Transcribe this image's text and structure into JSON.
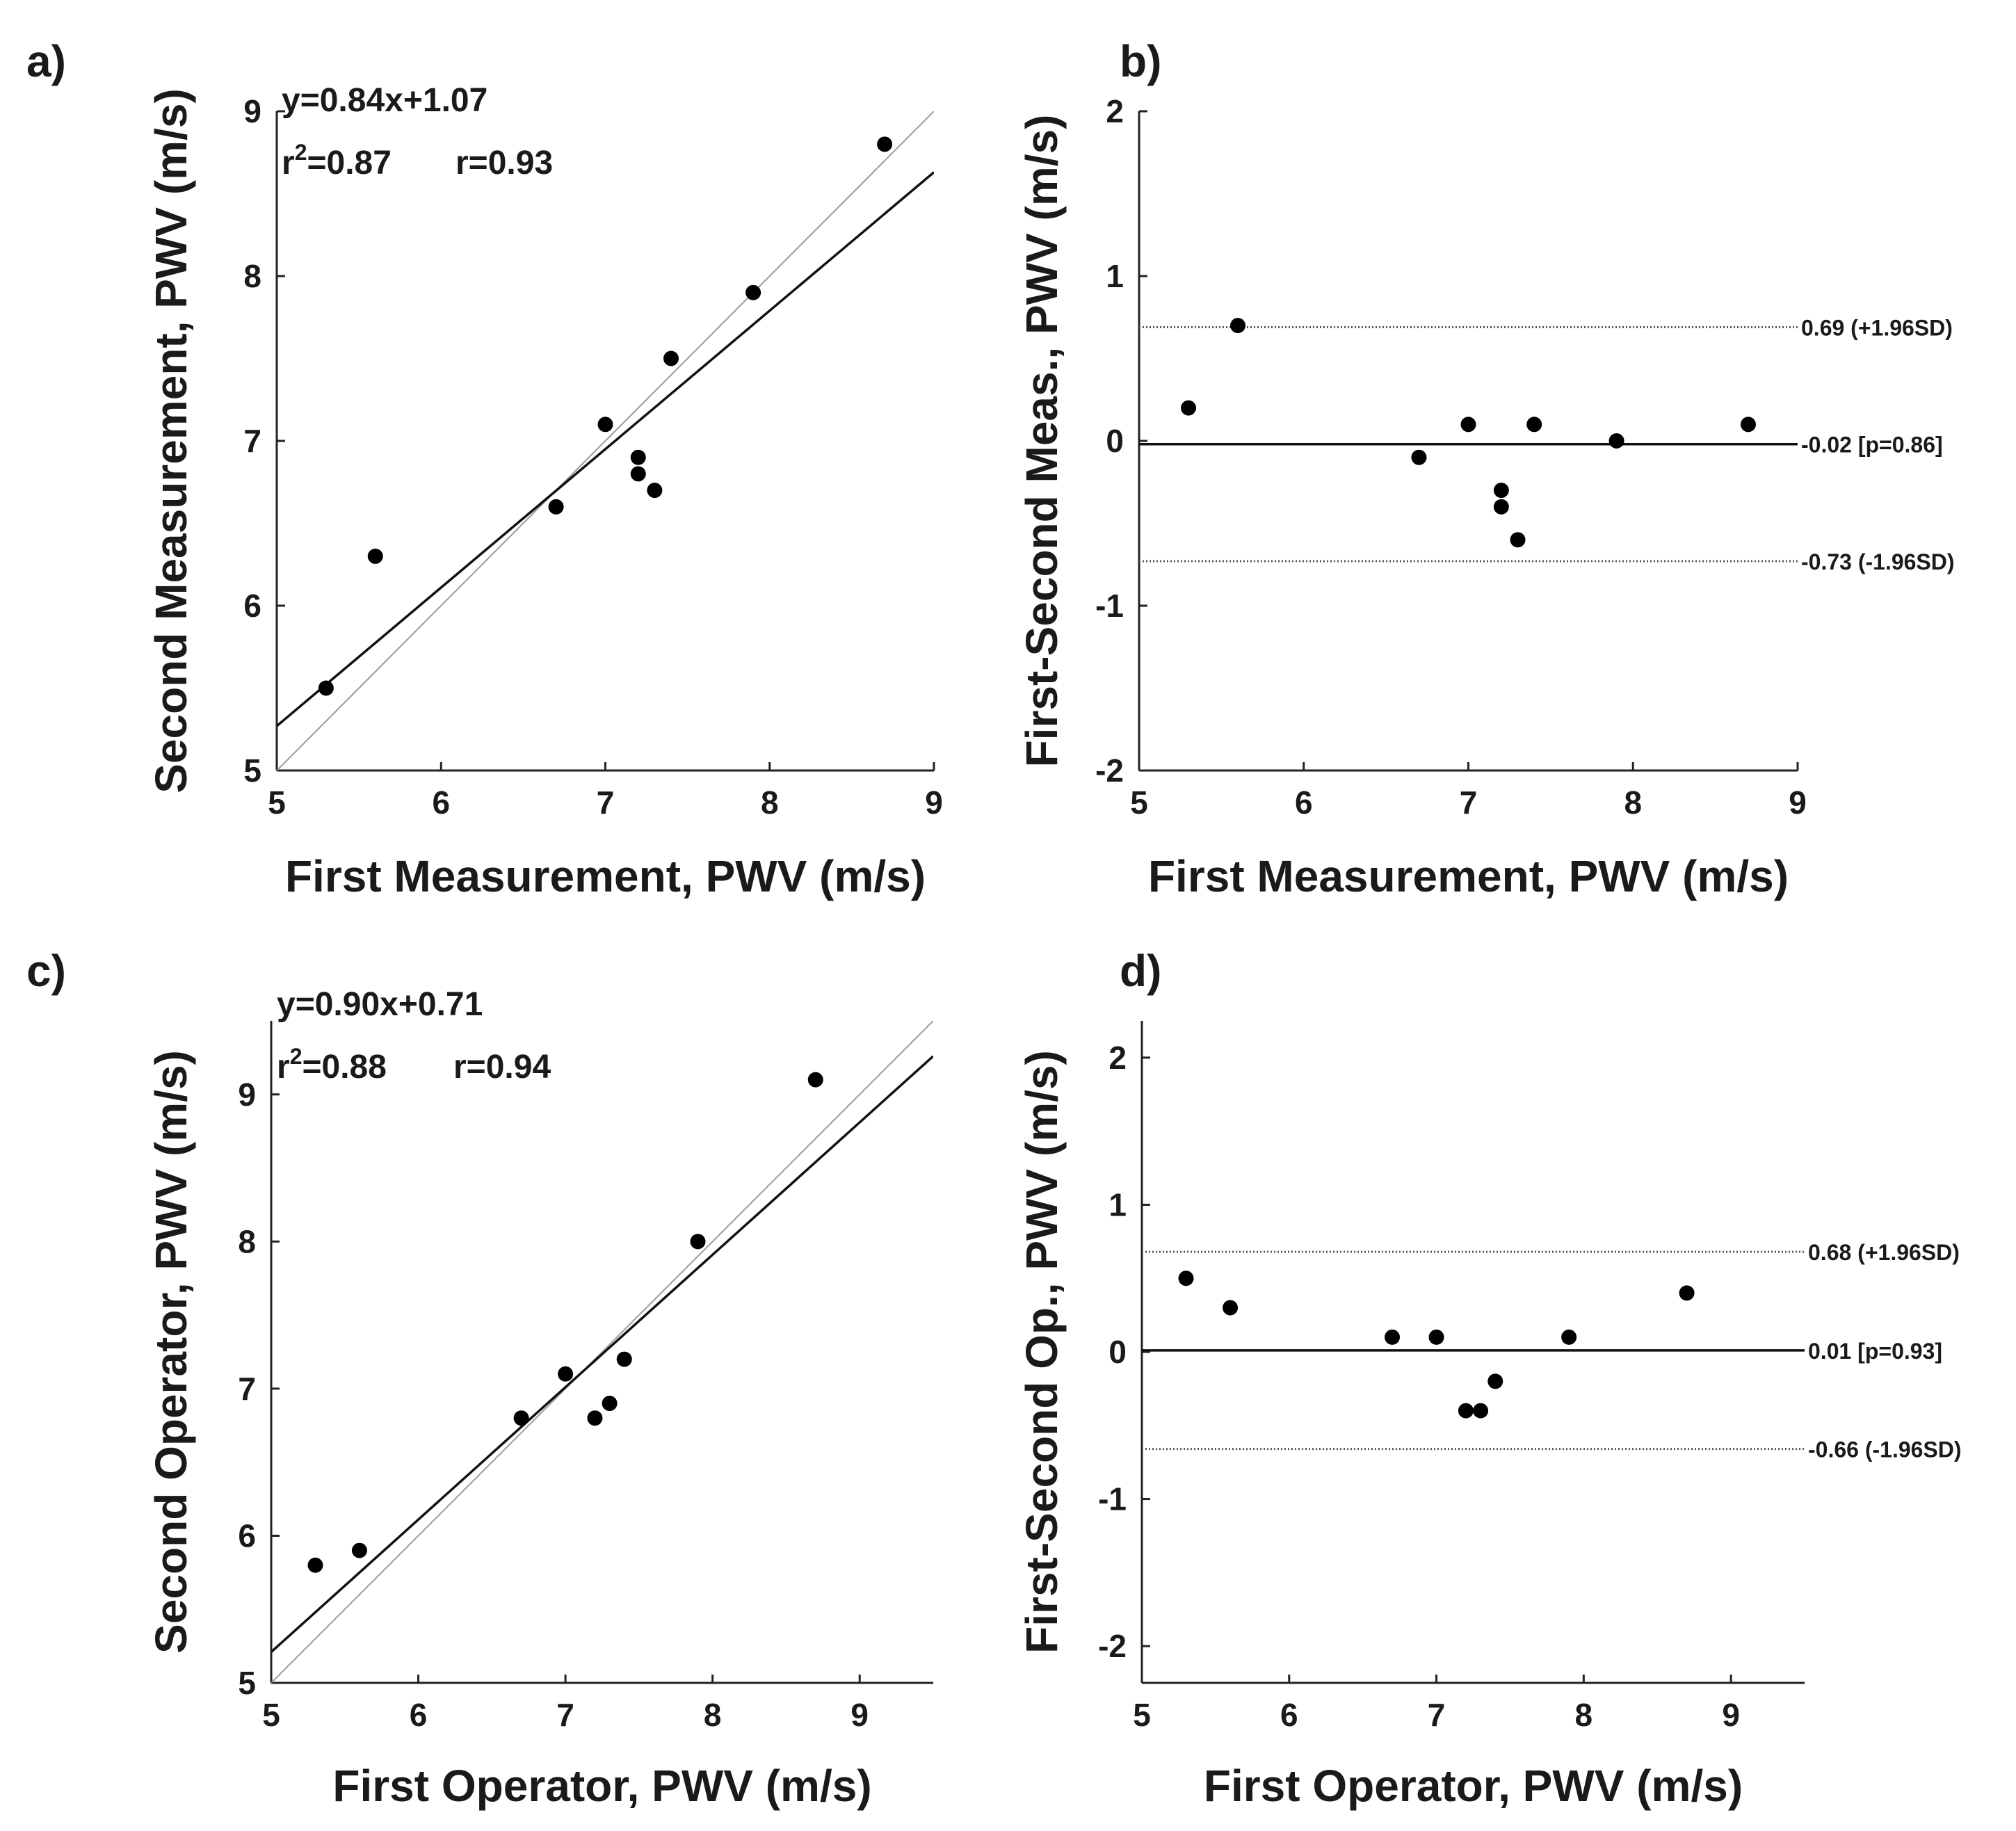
{
  "chart_data": [
    {
      "id": "a",
      "panel_label": "a)",
      "type": "scatter",
      "subtype": "regression",
      "xlabel": "First Measurement, PWV (m/s)",
      "ylabel": "Second Measurement, PWV (m/s)",
      "xlim": [
        5,
        9
      ],
      "ylim": [
        5,
        9
      ],
      "xticks": [
        5,
        6,
        7,
        8,
        9
      ],
      "yticks": [
        5,
        6,
        7,
        8,
        9
      ],
      "points": [
        [
          5.3,
          5.5
        ],
        [
          5.6,
          6.3
        ],
        [
          6.7,
          6.6
        ],
        [
          7.0,
          7.1
        ],
        [
          7.2,
          6.9
        ],
        [
          7.2,
          6.8
        ],
        [
          7.3,
          6.7
        ],
        [
          7.4,
          7.5
        ],
        [
          7.9,
          7.9
        ],
        [
          8.7,
          8.8
        ]
      ],
      "fit": {
        "slope": 0.84,
        "intercept": 1.07
      },
      "identity_line": true,
      "equation": "y=0.84x+1.07",
      "r2_base": "r",
      "r2_sup": "2",
      "r2_value": "=0.87",
      "r_text": "r=0.93"
    },
    {
      "id": "b",
      "panel_label": "b)",
      "type": "scatter",
      "subtype": "bland-altman",
      "xlabel": "First Measurement, PWV (m/s)",
      "ylabel": "First-Second Meas., PWV (m/s)",
      "xlim": [
        5,
        9
      ],
      "ylim": [
        -2,
        2
      ],
      "xticks": [
        5,
        6,
        7,
        8,
        9
      ],
      "yticks": [
        -2,
        -1,
        0,
        1,
        2
      ],
      "points": [
        [
          5.3,
          0.2
        ],
        [
          5.6,
          0.7
        ],
        [
          6.7,
          -0.1
        ],
        [
          7.0,
          0.1
        ],
        [
          7.2,
          -0.3
        ],
        [
          7.2,
          -0.4
        ],
        [
          7.3,
          -0.6
        ],
        [
          7.4,
          0.1
        ],
        [
          7.9,
          0.0
        ],
        [
          8.7,
          0.1
        ]
      ],
      "lines": [
        {
          "value": 0.69,
          "style": "dotted",
          "label": "0.69 (+1.96SD)"
        },
        {
          "value": -0.02,
          "style": "solid",
          "label": "-0.02 [p=0.86]"
        },
        {
          "value": -0.73,
          "style": "dotted",
          "label": "-0.73 (-1.96SD)"
        }
      ]
    },
    {
      "id": "c",
      "panel_label": "c)",
      "type": "scatter",
      "subtype": "regression",
      "xlabel": "First Operator, PWV (m/s)",
      "ylabel": "Second Operator, PWV (m/s)",
      "xlim": [
        5,
        9.5
      ],
      "ylim": [
        5,
        9.5
      ],
      "xticks": [
        5,
        6,
        7,
        8,
        9
      ],
      "yticks": [
        5,
        6,
        7,
        8,
        9
      ],
      "points": [
        [
          5.3,
          5.8
        ],
        [
          5.6,
          5.9
        ],
        [
          6.7,
          6.8
        ],
        [
          7.0,
          7.1
        ],
        [
          7.2,
          6.8
        ],
        [
          7.3,
          6.9
        ],
        [
          7.4,
          7.2
        ],
        [
          7.9,
          8.0
        ],
        [
          8.7,
          9.1
        ]
      ],
      "fit": {
        "slope": 0.9,
        "intercept": 0.71
      },
      "identity_line": true,
      "equation": "y=0.90x+0.71",
      "r2_base": "r",
      "r2_sup": "2",
      "r2_value": "=0.88",
      "r_text": "r=0.94"
    },
    {
      "id": "d",
      "panel_label": "d)",
      "type": "scatter",
      "subtype": "bland-altman",
      "xlabel": "First Operator, PWV (m/s)",
      "ylabel": "First-Second Op., PWV (m/s)",
      "xlim": [
        5,
        9.5
      ],
      "ylim": [
        -2.25,
        2.25
      ],
      "xticks": [
        5,
        6,
        7,
        8,
        9
      ],
      "yticks": [
        -2,
        -1,
        0,
        1,
        2
      ],
      "points": [
        [
          5.3,
          0.5
        ],
        [
          5.6,
          0.3
        ],
        [
          6.7,
          0.1
        ],
        [
          7.0,
          0.1
        ],
        [
          7.2,
          -0.4
        ],
        [
          7.3,
          -0.4
        ],
        [
          7.4,
          -0.2
        ],
        [
          7.9,
          0.1
        ],
        [
          8.7,
          0.4
        ]
      ],
      "lines": [
        {
          "value": 0.68,
          "style": "dotted",
          "label": "0.68 (+1.96SD)"
        },
        {
          "value": 0.01,
          "style": "solid",
          "label": "0.01 [p=0.93]"
        },
        {
          "value": -0.66,
          "style": "dotted",
          "label": "-0.66 (-1.96SD)"
        }
      ]
    }
  ]
}
